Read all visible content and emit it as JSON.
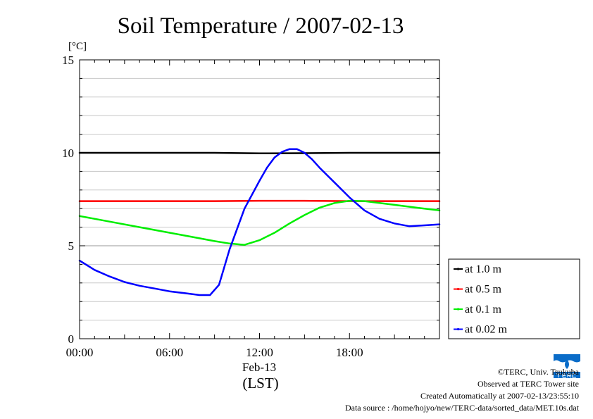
{
  "chart_data": {
    "type": "line",
    "title": "Soil Temperature / 2007-02-13",
    "ylabel": "[°C]",
    "xlabel": "Feb-13",
    "xlabel_sub": "(LST)",
    "ylim": [
      0,
      15
    ],
    "xlim": [
      0,
      24
    ],
    "yticks": [
      0,
      5,
      10,
      15
    ],
    "xticks": [
      {
        "value": 0,
        "label": "00:00"
      },
      {
        "value": 6,
        "label": "06:00"
      },
      {
        "value": 12,
        "label": "12:00"
      },
      {
        "value": 18,
        "label": "18:00"
      }
    ],
    "grid": true,
    "legend_position": "right",
    "series": [
      {
        "name": "at 1.0 m",
        "color": "#000000",
        "x": [
          0,
          3,
          6,
          9,
          12,
          15,
          18,
          21,
          24
        ],
        "y": [
          10.0,
          10.0,
          10.0,
          10.0,
          9.97,
          9.98,
          10.0,
          10.0,
          10.0
        ]
      },
      {
        "name": "at 0.5 m",
        "color": "#ff0000",
        "x": [
          0,
          3,
          6,
          9,
          12,
          15,
          18,
          21,
          24
        ],
        "y": [
          7.4,
          7.4,
          7.4,
          7.4,
          7.42,
          7.42,
          7.4,
          7.4,
          7.4
        ]
      },
      {
        "name": "at 0.1 m",
        "color": "#00ee00",
        "x": [
          0,
          2,
          4,
          6,
          8,
          9,
          10,
          11,
          12,
          13,
          14,
          15,
          16,
          17,
          18,
          19,
          20,
          21,
          22,
          23,
          24
        ],
        "y": [
          6.6,
          6.3,
          6.0,
          5.7,
          5.4,
          5.25,
          5.12,
          5.05,
          5.3,
          5.7,
          6.2,
          6.65,
          7.05,
          7.3,
          7.42,
          7.4,
          7.3,
          7.2,
          7.1,
          7.0,
          6.9
        ]
      },
      {
        "name": "at 0.02 m",
        "color": "#0000ff",
        "x": [
          0,
          1,
          2,
          3,
          4,
          5,
          6,
          7,
          8,
          8.7,
          9.3,
          10,
          11,
          12,
          12.5,
          13,
          13.5,
          14,
          14.5,
          15,
          15.5,
          16,
          17,
          18,
          19,
          20,
          21,
          22,
          23,
          24
        ],
        "y": [
          4.2,
          3.7,
          3.35,
          3.05,
          2.85,
          2.7,
          2.55,
          2.45,
          2.35,
          2.35,
          2.9,
          4.8,
          7.0,
          8.5,
          9.2,
          9.75,
          10.05,
          10.2,
          10.2,
          10.0,
          9.65,
          9.2,
          8.4,
          7.6,
          6.9,
          6.45,
          6.2,
          6.05,
          6.1,
          6.15
        ]
      }
    ],
    "credits": [
      "©TERC, Univ. Tsukuba",
      "Observed at TERC Tower site",
      "Created Automatically at 2007-02-13/23:55:10",
      "Data source : /home/hojyo/new/TERC-data/sorted_data/MET.10s.dat"
    ]
  }
}
